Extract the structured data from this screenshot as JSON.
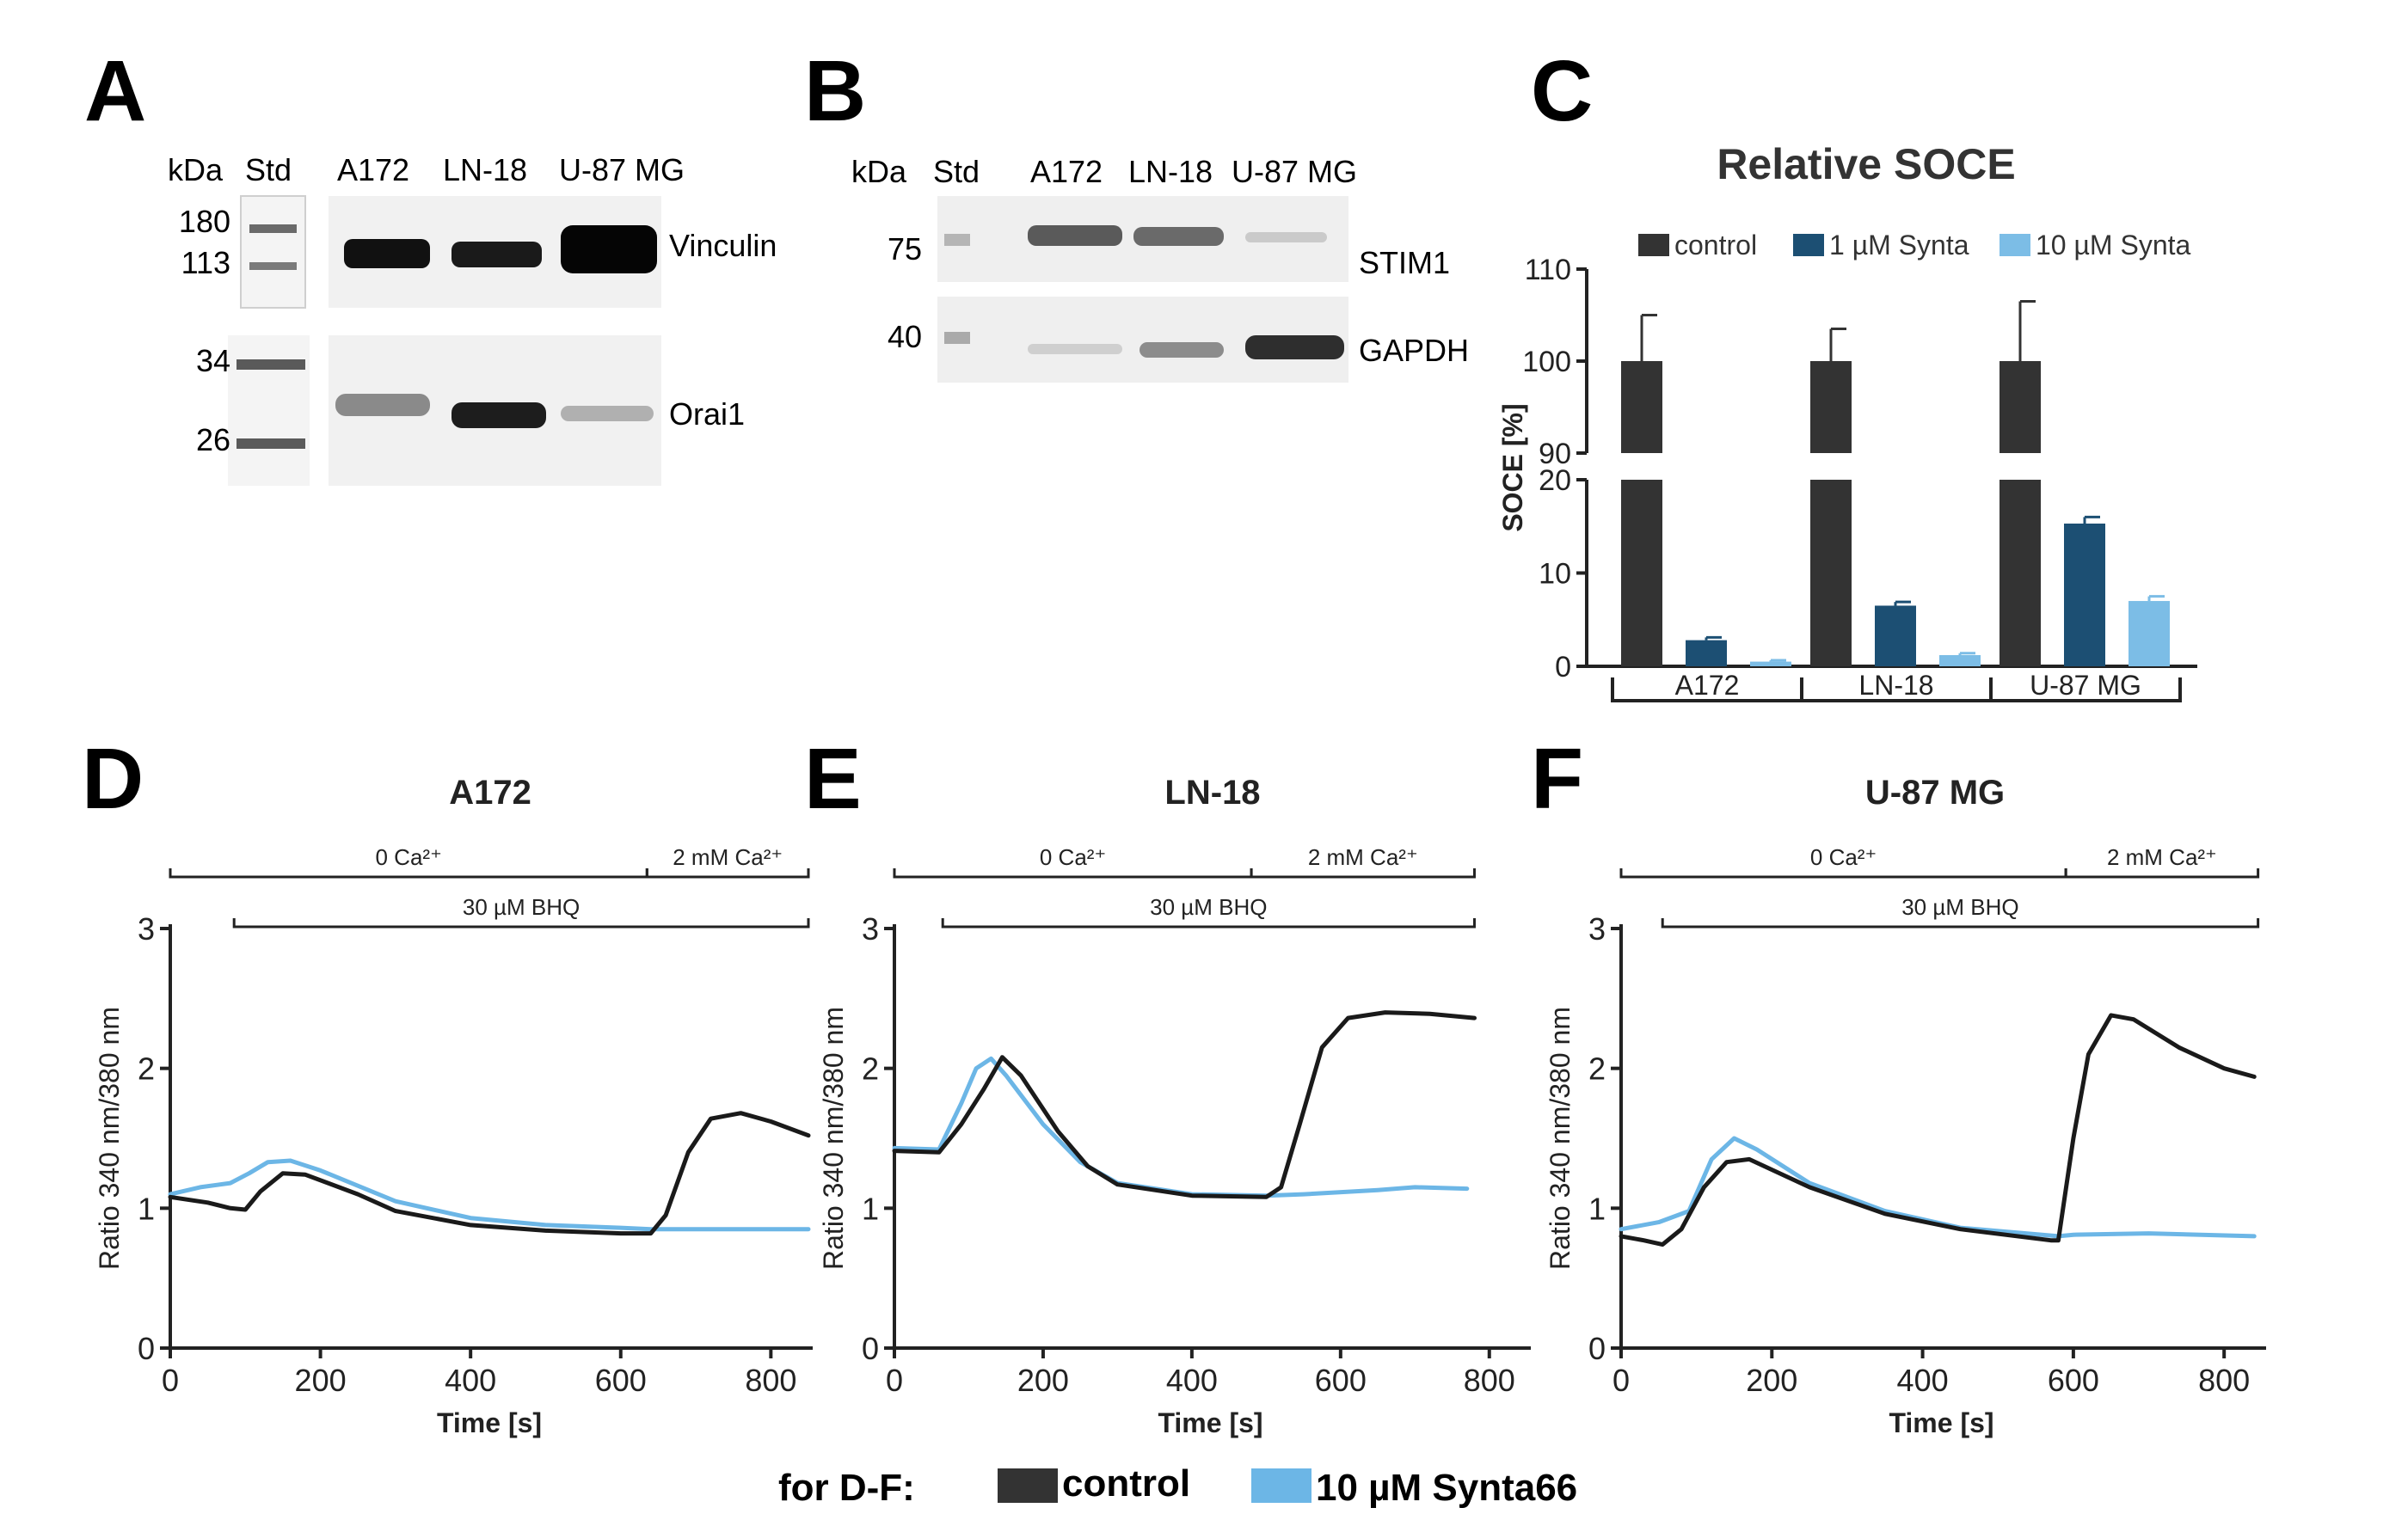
{
  "panel_letters": [
    "A",
    "B",
    "C",
    "D",
    "E",
    "F"
  ],
  "panel_a": {
    "kda_label": "kDa",
    "std_label": "Std",
    "lanes": [
      "A172",
      "LN-18",
      "U-87 MG"
    ],
    "markers_top": [
      "180",
      "113"
    ],
    "markers_bottom": [
      "34",
      "26"
    ],
    "proteins": [
      "Vinculin",
      "Orai1"
    ]
  },
  "panel_b": {
    "kda_label": "kDa",
    "std_label": "Std",
    "lanes": [
      "A172",
      "LN-18",
      "U-87 MG"
    ],
    "markers": [
      "75",
      "40"
    ],
    "proteins": [
      "STIM1",
      "GAPDH"
    ]
  },
  "chart_data": [
    {
      "panel": "C",
      "type": "bar",
      "title": "Relative SOCE",
      "ylabel": "SOCE [%]",
      "axis_break": {
        "lower": [
          0,
          20
        ],
        "upper": [
          90,
          110
        ]
      },
      "yticks_lower": [
        0,
        10,
        20
      ],
      "yticks_upper": [
        90,
        100,
        110
      ],
      "categories": [
        "A172",
        "LN-18",
        "U-87 MG"
      ],
      "series": [
        {
          "name": "control",
          "color": "#333333",
          "values": [
            100,
            100,
            100
          ],
          "errors": [
            5,
            3.5,
            6.5
          ]
        },
        {
          "name": "1 µM Synta",
          "color": "#1c4f73",
          "values": [
            2.8,
            6.5,
            15.3
          ],
          "errors": [
            0.3,
            0.4,
            0.7
          ]
        },
        {
          "name": "10 µM Synta",
          "color": "#7cbde6",
          "values": [
            0.5,
            1.2,
            7.0
          ],
          "errors": [
            0.15,
            0.2,
            0.5
          ]
        }
      ]
    },
    {
      "panel": "D",
      "type": "line",
      "title": "A172",
      "xlabel": "Time [s]",
      "ylabel": "Ratio 340 nm/380 nm",
      "xlim": [
        0,
        850
      ],
      "ylim": [
        0,
        3
      ],
      "xticks": [
        0,
        200,
        400,
        600,
        800
      ],
      "yticks": [
        0,
        1,
        2,
        3
      ],
      "bars": [
        {
          "label": "0 Ca²⁺",
          "from": 0,
          "to": 635,
          "row": 1
        },
        {
          "label": "2 mM Ca²⁺",
          "from": 635,
          "to": 850,
          "row": 1
        },
        {
          "label": "30 µM BHQ",
          "from": 85,
          "to": 850,
          "row": 2
        }
      ],
      "series": [
        {
          "name": "10 µM Synta66",
          "color": "#6cb6e6",
          "points": [
            [
              0,
              1.1
            ],
            [
              40,
              1.15
            ],
            [
              80,
              1.18
            ],
            [
              105,
              1.25
            ],
            [
              130,
              1.33
            ],
            [
              160,
              1.34
            ],
            [
              200,
              1.27
            ],
            [
              300,
              1.05
            ],
            [
              400,
              0.93
            ],
            [
              500,
              0.88
            ],
            [
              600,
              0.86
            ],
            [
              640,
              0.85
            ],
            [
              700,
              0.85
            ],
            [
              850,
              0.85
            ]
          ]
        },
        {
          "name": "control",
          "color": "#1a1a1a",
          "points": [
            [
              0,
              1.08
            ],
            [
              50,
              1.04
            ],
            [
              80,
              1.0
            ],
            [
              100,
              0.99
            ],
            [
              120,
              1.12
            ],
            [
              150,
              1.25
            ],
            [
              180,
              1.24
            ],
            [
              250,
              1.1
            ],
            [
              300,
              0.98
            ],
            [
              400,
              0.88
            ],
            [
              500,
              0.84
            ],
            [
              600,
              0.82
            ],
            [
              640,
              0.82
            ],
            [
              660,
              0.95
            ],
            [
              690,
              1.4
            ],
            [
              720,
              1.64
            ],
            [
              760,
              1.68
            ],
            [
              800,
              1.62
            ],
            [
              850,
              1.52
            ]
          ]
        }
      ]
    },
    {
      "panel": "E",
      "type": "line",
      "title": "LN-18",
      "xlabel": "Time [s]",
      "ylabel": "Ratio 340 nm/380 nm",
      "xlim": [
        0,
        850
      ],
      "ylim": [
        0,
        3
      ],
      "xticks": [
        0,
        200,
        400,
        600,
        800
      ],
      "yticks": [
        0,
        1,
        2,
        3
      ],
      "bars": [
        {
          "label": "0 Ca²⁺",
          "from": 0,
          "to": 480,
          "row": 1
        },
        {
          "label": "2 mM Ca²⁺",
          "from": 480,
          "to": 780,
          "row": 1
        },
        {
          "label": "30 µM BHQ",
          "from": 65,
          "to": 780,
          "row": 2
        }
      ],
      "series": [
        {
          "name": "10 µM Synta66",
          "color": "#6cb6e6",
          "points": [
            [
              0,
              1.43
            ],
            [
              60,
              1.42
            ],
            [
              90,
              1.75
            ],
            [
              110,
              2.0
            ],
            [
              130,
              2.07
            ],
            [
              150,
              1.95
            ],
            [
              200,
              1.6
            ],
            [
              250,
              1.33
            ],
            [
              300,
              1.18
            ],
            [
              400,
              1.1
            ],
            [
              500,
              1.09
            ],
            [
              550,
              1.1
            ],
            [
              650,
              1.13
            ],
            [
              700,
              1.15
            ],
            [
              770,
              1.14
            ]
          ]
        },
        {
          "name": "control",
          "color": "#1a1a1a",
          "points": [
            [
              0,
              1.41
            ],
            [
              60,
              1.4
            ],
            [
              90,
              1.6
            ],
            [
              120,
              1.85
            ],
            [
              145,
              2.08
            ],
            [
              170,
              1.95
            ],
            [
              220,
              1.55
            ],
            [
              260,
              1.3
            ],
            [
              300,
              1.17
            ],
            [
              400,
              1.09
            ],
            [
              500,
              1.08
            ],
            [
              520,
              1.15
            ],
            [
              545,
              1.6
            ],
            [
              575,
              2.15
            ],
            [
              610,
              2.36
            ],
            [
              660,
              2.4
            ],
            [
              720,
              2.39
            ],
            [
              780,
              2.36
            ]
          ]
        }
      ]
    },
    {
      "panel": "F",
      "type": "line",
      "title": "U-87 MG",
      "xlabel": "Time [s]",
      "ylabel": "Ratio 340 nm/380 nm",
      "xlim": [
        0,
        850
      ],
      "ylim": [
        0,
        3
      ],
      "xticks": [
        0,
        200,
        400,
        600,
        800
      ],
      "yticks": [
        0,
        1,
        2,
        3
      ],
      "bars": [
        {
          "label": "0 Ca²⁺",
          "from": 0,
          "to": 590,
          "row": 1
        },
        {
          "label": "2 mM Ca²⁺",
          "from": 590,
          "to": 845,
          "row": 1
        },
        {
          "label": "30 µM BHQ",
          "from": 55,
          "to": 845,
          "row": 2
        }
      ],
      "series": [
        {
          "name": "10 µM Synta66",
          "color": "#6cb6e6",
          "points": [
            [
              0,
              0.85
            ],
            [
              50,
              0.9
            ],
            [
              90,
              0.98
            ],
            [
              120,
              1.35
            ],
            [
              150,
              1.5
            ],
            [
              180,
              1.42
            ],
            [
              250,
              1.18
            ],
            [
              350,
              0.98
            ],
            [
              450,
              0.86
            ],
            [
              580,
              0.8
            ],
            [
              600,
              0.81
            ],
            [
              700,
              0.82
            ],
            [
              840,
              0.8
            ]
          ]
        },
        {
          "name": "control",
          "color": "#1a1a1a",
          "points": [
            [
              0,
              0.8
            ],
            [
              30,
              0.77
            ],
            [
              55,
              0.74
            ],
            [
              80,
              0.85
            ],
            [
              110,
              1.15
            ],
            [
              140,
              1.33
            ],
            [
              170,
              1.35
            ],
            [
              250,
              1.15
            ],
            [
              350,
              0.96
            ],
            [
              450,
              0.85
            ],
            [
              570,
              0.77
            ],
            [
              580,
              0.77
            ],
            [
              600,
              1.5
            ],
            [
              620,
              2.1
            ],
            [
              650,
              2.38
            ],
            [
              680,
              2.35
            ],
            [
              740,
              2.15
            ],
            [
              800,
              2.0
            ],
            [
              840,
              1.94
            ]
          ]
        }
      ]
    }
  ],
  "shared_legend": {
    "prefix": "for D-F:",
    "items": [
      {
        "label": "control",
        "color": "#333333"
      },
      {
        "label": "10 µM Synta66",
        "color": "#6cb6e6"
      }
    ]
  }
}
